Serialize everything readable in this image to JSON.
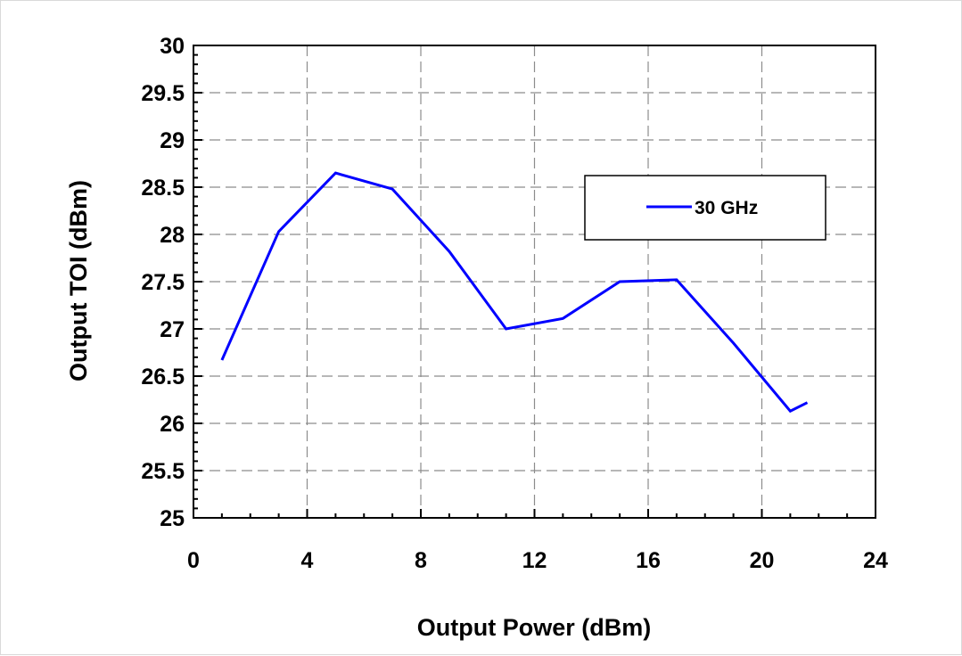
{
  "chart_data": {
    "type": "line",
    "title": "",
    "xlabel": "Output Power (dBm)",
    "ylabel": "Output TOI (dBm)",
    "xlim": [
      0,
      24
    ],
    "ylim": [
      25,
      30
    ],
    "xticks": [
      "0",
      "4",
      "8",
      "12",
      "16",
      "20",
      "24"
    ],
    "yticks": [
      "25",
      "25.5",
      "26",
      "26.5",
      "27",
      "27.5",
      "28",
      "28.5",
      "29",
      "29.5",
      "30"
    ],
    "grid": true,
    "legend_position": "top-right",
    "series": [
      {
        "name": "30 GHz",
        "color": "#0000ff",
        "x": [
          1,
          3,
          5,
          7,
          9,
          11,
          13,
          15,
          17,
          19,
          21,
          21.6
        ],
        "y": [
          26.67,
          28.03,
          28.65,
          28.48,
          27.82,
          27.0,
          27.11,
          27.5,
          27.52,
          26.85,
          26.13,
          26.22
        ]
      }
    ]
  }
}
